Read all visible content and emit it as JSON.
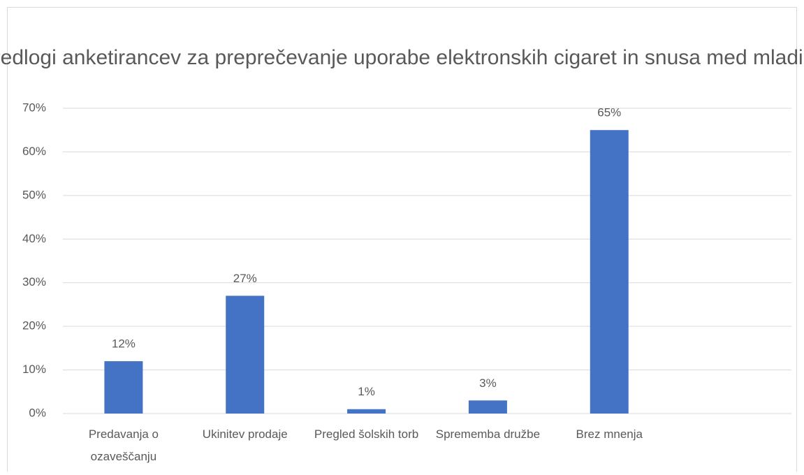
{
  "chart_data": {
    "type": "bar",
    "title": "Predlogi anketirancev za preprečevanje uporabe elektronskih cigaret in snusa med mladimi",
    "categories": [
      "Predavanja o ozaveščanju",
      "Ukinitev prodaje",
      "Pregled šolskih torb",
      "Sprememba družbe",
      "Brez mnenja",
      null
    ],
    "values": [
      12,
      27,
      1,
      3,
      65,
      null
    ],
    "value_labels": [
      "12%",
      "27%",
      "1%",
      "3%",
      "65%",
      null
    ],
    "color": "#4472c4",
    "ylim": [
      0,
      70
    ],
    "yticks": [
      {
        "value": 0,
        "label": "0%"
      },
      {
        "value": 10,
        "label": "10%"
      },
      {
        "value": 20,
        "label": "20%"
      },
      {
        "value": 30,
        "label": "30%"
      },
      {
        "value": 40,
        "label": "40%"
      },
      {
        "value": 50,
        "label": "50%"
      },
      {
        "value": 60,
        "label": "60%"
      },
      {
        "value": 70,
        "label": "70%"
      }
    ],
    "grid": true
  }
}
